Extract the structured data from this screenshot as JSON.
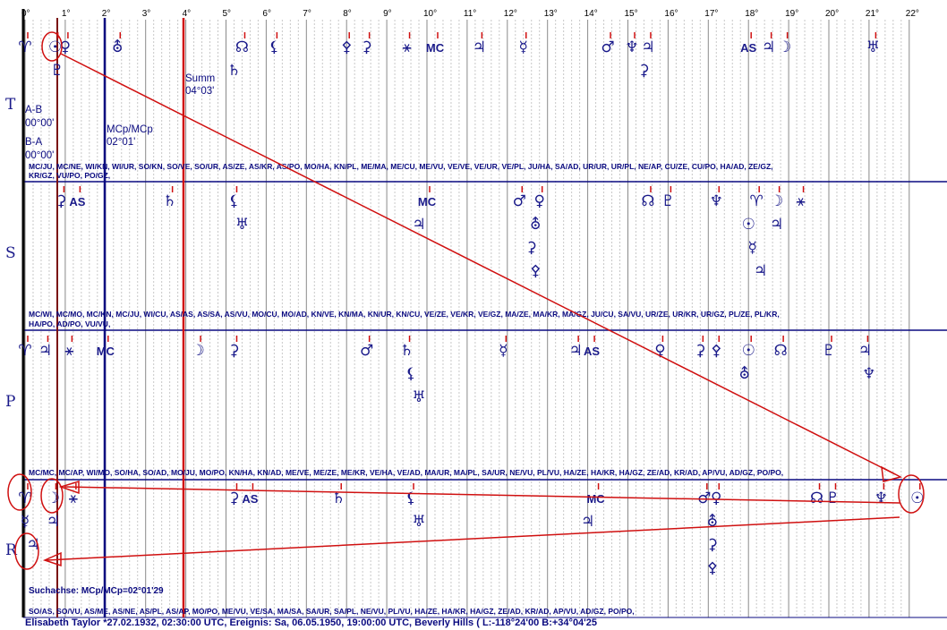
{
  "degree_ticks": [
    "0°",
    "1°",
    "2°",
    "3°",
    "4°",
    "5°",
    "6°",
    "7°",
    "8°",
    "9°",
    "10°",
    "11°",
    "12°",
    "13°",
    "14°",
    "15°",
    "16°",
    "17°",
    "18°",
    "19°",
    "20°",
    "21°",
    "22°"
  ],
  "rows": {
    "T": {
      "label": "T",
      "aspects_line1": "MC/JU, MC/NE, WI/KN, WI/UR, SO/KN, SO/VE, SO/UR, AS/ZE, AS/KR, AS/PO, MO/HA, KN/PL, ME/MA, ME/CU, ME/VU, VE/VE, VE/UR, VE/PL, JU/HA, SA/AD, UR/UR, UR/PL, NE/AP, CU/ZE, CU/PO, HA/AD, ZE/GZ,",
      "aspects_line2": "KR/GZ, VU/PO, PO/GZ,"
    },
    "S": {
      "label": "S",
      "aspects_line1": "MC/WI, MC/MO, MC/KN, MC/JU, WI/CU, AS/AS, AS/SA, AS/VU, MO/CU, MO/AD, KN/VE, KN/MA, KN/UR, KN/CU, VE/ZE, VE/KR, VE/GZ, MA/ZE, MA/KR, MA/GZ, JU/CU, SA/VU, UR/ZE, UR/KR, UR/GZ, PL/ZE, PL/KR,",
      "aspects_line2": "HA/PO, AD/PO, VU/VU,"
    },
    "P": {
      "label": "P",
      "aspects_line1": "MC/MC, MC/AP, WI/MO, SO/HA, SO/AD, MO/JU, MO/PO, KN/HA, KN/AD, ME/VE, ME/ZE, ME/KR, VE/HA, VE/AD, MA/UR, MA/PL, SA/UR, NE/VU, PL/VU, HA/ZE, HA/KR, HA/GZ, ZE/AD, KR/AD, AP/VU, AD/GZ, PO/PO,",
      "aspects_line2": ""
    },
    "R": {
      "label": "R",
      "aspects_line1": "SO/AS, SO/VU, AS/ME, AS/NE, AS/PL, AS/AP, MO/PO, ME/VU, VE/SA, MA/SA, SA/UR, SA/PL, NE/VU, PL/VU, HA/ZE, HA/KR, HA/GZ, ZE/AD, KR/AD, AP/VU, AD/GZ, PO/PO,",
      "aspects_line2": ""
    }
  },
  "notes": {
    "ab_label": "A-B",
    "ab_value": "00°00'",
    "ba_label": "B-A",
    "ba_value": "00°00'",
    "mcp_label": "MCp/MCp",
    "mcp_value": "02°01'",
    "summ_label": "Summ",
    "summ_value": "04°03'",
    "search_axis": "Suchachse: MCp/MCp=02°01'29"
  },
  "footer": "Elisabeth  Taylor  *27.02.1932, 02:30:00 UTC, Ereignis: Sa, 06.05.1950, 19:00:00 UTC, Beverly Hills ( L:-118°24'00 B:+34°04'25",
  "colors": {
    "navy": "#0a0a80",
    "red": "#d01010",
    "green": "#1a8a1a",
    "grid": "#bdbdbd"
  },
  "glyphs": {
    "T": [
      {
        "deg": 0.0,
        "sym": "♈",
        "color": "navy"
      },
      {
        "deg": 0.75,
        "sym": "☉",
        "color": "navy"
      },
      {
        "deg": 1.0,
        "sym": "♀",
        "color": "navy"
      },
      {
        "deg": 0.8,
        "sym": "♇",
        "color": "navy",
        "lvl": 1
      },
      {
        "deg": 2.3,
        "sym": "⛢",
        "color": "navy"
      },
      {
        "deg": 5.4,
        "sym": "☊",
        "color": "navy"
      },
      {
        "deg": 6.2,
        "sym": "⚸",
        "color": "navy"
      },
      {
        "deg": 5.2,
        "sym": "♄",
        "color": "navy",
        "lvl": 1
      },
      {
        "deg": 8.0,
        "sym": "⚴",
        "color": "navy"
      },
      {
        "deg": 8.5,
        "sym": "⚳",
        "color": "navy"
      },
      {
        "deg": 9.5,
        "sym": "⚹",
        "color": "navy"
      },
      {
        "deg": 10.2,
        "sym": "MC",
        "color": "green"
      },
      {
        "deg": 11.3,
        "sym": "♃",
        "color": "navy"
      },
      {
        "deg": 12.4,
        "sym": "☿",
        "color": "navy"
      },
      {
        "deg": 14.5,
        "sym": "♂",
        "color": "navy"
      },
      {
        "deg": 15.1,
        "sym": "♆",
        "color": "navy"
      },
      {
        "deg": 15.5,
        "sym": "♃",
        "color": "navy"
      },
      {
        "deg": 15.4,
        "sym": "⚳",
        "color": "navy",
        "lvl": 1
      },
      {
        "deg": 18.0,
        "sym": "AS",
        "color": "red"
      },
      {
        "deg": 18.5,
        "sym": "♃",
        "color": "navy"
      },
      {
        "deg": 18.9,
        "sym": "☽",
        "color": "navy"
      },
      {
        "deg": 21.1,
        "sym": "♅",
        "color": "navy"
      }
    ],
    "S": [
      {
        "deg": 0.9,
        "sym": "⚳",
        "color": "navy"
      },
      {
        "deg": 1.3,
        "sym": "AS",
        "color": "red"
      },
      {
        "deg": 3.6,
        "sym": "♄",
        "color": "navy"
      },
      {
        "deg": 5.2,
        "sym": "⚸",
        "color": "navy"
      },
      {
        "deg": 5.4,
        "sym": "♅",
        "color": "navy",
        "lvl": 1
      },
      {
        "deg": 10.0,
        "sym": "MC",
        "color": "green"
      },
      {
        "deg": 9.8,
        "sym": "♃",
        "color": "navy",
        "lvl": 1
      },
      {
        "deg": 12.3,
        "sym": "♂",
        "color": "navy"
      },
      {
        "deg": 12.8,
        "sym": "♀",
        "color": "navy"
      },
      {
        "deg": 12.7,
        "sym": "⛢",
        "color": "navy",
        "lvl": 1
      },
      {
        "deg": 12.6,
        "sym": "⚳",
        "color": "navy",
        "lvl": 2
      },
      {
        "deg": 12.7,
        "sym": "⚴",
        "color": "navy",
        "lvl": 3
      },
      {
        "deg": 15.5,
        "sym": "☊",
        "color": "navy"
      },
      {
        "deg": 16.0,
        "sym": "♇",
        "color": "navy"
      },
      {
        "deg": 17.2,
        "sym": "♆",
        "color": "navy"
      },
      {
        "deg": 18.2,
        "sym": "♈",
        "color": "navy"
      },
      {
        "deg": 18.7,
        "sym": "☽",
        "color": "navy"
      },
      {
        "deg": 19.3,
        "sym": "⚹",
        "color": "navy"
      },
      {
        "deg": 18.0,
        "sym": "☉",
        "color": "navy",
        "lvl": 1
      },
      {
        "deg": 18.7,
        "sym": "♃",
        "color": "navy",
        "lvl": 1
      },
      {
        "deg": 18.1,
        "sym": "☿",
        "color": "navy",
        "lvl": 2
      },
      {
        "deg": 18.3,
        "sym": "♃",
        "color": "navy",
        "lvl": 3
      }
    ],
    "P": [
      {
        "deg": 0.0,
        "sym": "♈",
        "color": "navy"
      },
      {
        "deg": 0.5,
        "sym": "♃",
        "color": "navy"
      },
      {
        "deg": 1.1,
        "sym": "⚹",
        "color": "navy"
      },
      {
        "deg": 2.0,
        "sym": "MC",
        "color": "green"
      },
      {
        "deg": 4.3,
        "sym": "☽",
        "color": "navy"
      },
      {
        "deg": 5.2,
        "sym": "⚳",
        "color": "navy"
      },
      {
        "deg": 8.5,
        "sym": "♂",
        "color": "navy"
      },
      {
        "deg": 9.5,
        "sym": "♄",
        "color": "navy"
      },
      {
        "deg": 9.6,
        "sym": "⚸",
        "color": "navy",
        "lvl": 1
      },
      {
        "deg": 9.8,
        "sym": "♅",
        "color": "navy",
        "lvl": 2
      },
      {
        "deg": 11.9,
        "sym": "☿",
        "color": "navy"
      },
      {
        "deg": 13.7,
        "sym": "♃",
        "color": "navy"
      },
      {
        "deg": 14.1,
        "sym": "AS",
        "color": "red"
      },
      {
        "deg": 15.8,
        "sym": "♀",
        "color": "navy"
      },
      {
        "deg": 16.8,
        "sym": "⚳",
        "color": "navy"
      },
      {
        "deg": 17.2,
        "sym": "⚴",
        "color": "navy"
      },
      {
        "deg": 18.0,
        "sym": "☉",
        "color": "navy"
      },
      {
        "deg": 18.8,
        "sym": "☊",
        "color": "navy"
      },
      {
        "deg": 17.9,
        "sym": "⛢",
        "color": "navy",
        "lvl": 1
      },
      {
        "deg": 20.0,
        "sym": "♇",
        "color": "navy"
      },
      {
        "deg": 20.9,
        "sym": "♃",
        "color": "navy"
      },
      {
        "deg": 21.0,
        "sym": "♆",
        "color": "navy",
        "lvl": 1
      }
    ],
    "R": [
      {
        "deg": 0.0,
        "sym": "♈",
        "color": "navy"
      },
      {
        "deg": 0.7,
        "sym": "☽",
        "color": "navy"
      },
      {
        "deg": 1.2,
        "sym": "⚹",
        "color": "navy"
      },
      {
        "deg": 0.0,
        "sym": "☿",
        "color": "navy",
        "lvl": 1
      },
      {
        "deg": 0.7,
        "sym": "♃",
        "color": "navy",
        "lvl": 1
      },
      {
        "deg": 0.2,
        "sym": "♃",
        "color": "navy",
        "lvl": 2
      },
      {
        "deg": 5.2,
        "sym": "⚳",
        "color": "navy"
      },
      {
        "deg": 5.6,
        "sym": "AS",
        "color": "red"
      },
      {
        "deg": 7.8,
        "sym": "♄",
        "color": "navy"
      },
      {
        "deg": 9.6,
        "sym": "⚸",
        "color": "navy"
      },
      {
        "deg": 9.8,
        "sym": "♅",
        "color": "navy",
        "lvl": 1
      },
      {
        "deg": 14.2,
        "sym": "MC",
        "color": "green"
      },
      {
        "deg": 14.0,
        "sym": "♃",
        "color": "navy",
        "lvl": 1
      },
      {
        "deg": 16.9,
        "sym": "♂",
        "color": "navy"
      },
      {
        "deg": 17.2,
        "sym": "♀",
        "color": "navy"
      },
      {
        "deg": 17.1,
        "sym": "⛢",
        "color": "navy",
        "lvl": 1
      },
      {
        "deg": 17.1,
        "sym": "⚳",
        "color": "navy",
        "lvl": 2
      },
      {
        "deg": 17.1,
        "sym": "⚴",
        "color": "navy",
        "lvl": 3
      },
      {
        "deg": 19.7,
        "sym": "☊",
        "color": "navy"
      },
      {
        "deg": 20.1,
        "sym": "♇",
        "color": "navy"
      },
      {
        "deg": 21.3,
        "sym": "♆",
        "color": "navy"
      },
      {
        "deg": 22.2,
        "sym": "☉",
        "color": "navy"
      }
    ]
  }
}
